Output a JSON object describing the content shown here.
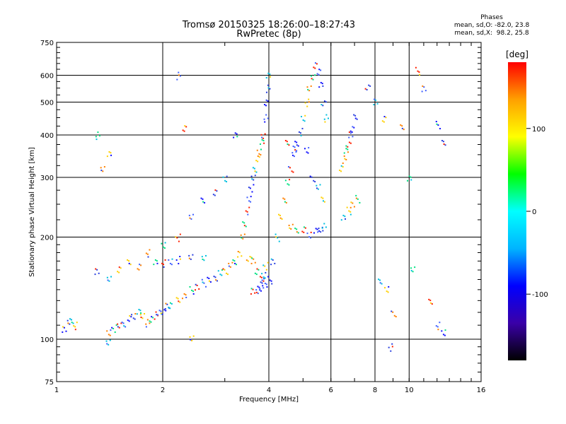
{
  "header": {
    "line1": "Tromsø 20150325 18:26:00–18:27:43",
    "line2": "RwPretec (8p)"
  },
  "phases_box": {
    "title": "Phases",
    "line_o": "mean, sd,O: -82.0, 23.8",
    "line_x": "mean, sd,X:  98.2, 25.8"
  },
  "colorbar": {
    "unit": "[deg]",
    "ticks": [
      100,
      0,
      -100
    ],
    "range": [
      -180,
      180
    ],
    "colors": [
      "#000000",
      "#3a00a8",
      "#0000ff",
      "#00b4ff",
      "#00ffff",
      "#00ff00",
      "#ffff00",
      "#ffa000",
      "#ff0000"
    ]
  },
  "chart_data": {
    "type": "scatter",
    "title": "Tromsø 20150325 18:26:00–18:27:43",
    "subtitle": "RwPretec (8p)",
    "xlabel": "Frequency [MHz]",
    "ylabel": "Stationary phase Virtual Height [km]",
    "x_scale": "log",
    "y_scale": "log",
    "xlim": [
      1,
      16
    ],
    "ylim": [
      75,
      750
    ],
    "x_ticks": [
      1,
      2,
      4,
      6,
      8,
      10,
      16
    ],
    "y_ticks": [
      75,
      100,
      200,
      300,
      400,
      500,
      600,
      750
    ],
    "grid": true,
    "series": [
      {
        "values": [
          [
            1.05,
            108
          ],
          [
            1.08,
            112
          ],
          [
            1.1,
            114
          ],
          [
            1.12,
            110
          ],
          [
            1.4,
            105
          ],
          [
            1.45,
            108
          ],
          [
            1.5,
            110
          ],
          [
            1.55,
            112
          ],
          [
            1.6,
            115
          ],
          [
            1.65,
            118
          ],
          [
            1.7,
            120
          ],
          [
            1.75,
            118
          ],
          [
            1.8,
            112
          ],
          [
            1.85,
            115
          ],
          [
            1.9,
            118
          ],
          [
            1.95,
            120
          ],
          [
            2.0,
            122
          ],
          [
            2.05,
            125
          ],
          [
            2.1,
            127
          ],
          [
            2.2,
            130
          ],
          [
            2.3,
            135
          ],
          [
            2.4,
            140
          ],
          [
            2.5,
            143
          ],
          [
            2.6,
            147
          ],
          [
            2.7,
            150
          ],
          [
            2.8,
            153
          ],
          [
            2.9,
            157
          ],
          [
            3.0,
            160
          ],
          [
            3.1,
            165
          ],
          [
            3.2,
            170
          ],
          [
            2.0,
            168
          ],
          [
            2.1,
            170
          ],
          [
            2.2,
            172
          ],
          [
            2.4,
            175
          ],
          [
            2.6,
            176
          ],
          [
            1.5,
            160
          ],
          [
            1.7,
            165
          ],
          [
            1.9,
            168
          ]
        ]
      },
      {
        "values": [
          [
            3.3,
            180
          ],
          [
            3.35,
            200
          ],
          [
            3.4,
            220
          ],
          [
            3.45,
            240
          ],
          [
            3.5,
            260
          ],
          [
            3.55,
            280
          ],
          [
            3.6,
            300
          ],
          [
            3.65,
            320
          ],
          [
            3.7,
            340
          ],
          [
            3.75,
            360
          ],
          [
            3.8,
            380
          ],
          [
            3.85,
            400
          ],
          [
            3.9,
            450
          ],
          [
            3.92,
            500
          ],
          [
            3.95,
            550
          ],
          [
            3.97,
            600
          ],
          [
            3.5,
            175
          ],
          [
            3.6,
            170
          ],
          [
            3.7,
            160
          ],
          [
            3.8,
            150
          ],
          [
            3.9,
            145
          ],
          [
            4.0,
            150
          ],
          [
            4.1,
            170
          ],
          [
            4.2,
            200
          ],
          [
            4.3,
            230
          ],
          [
            4.4,
            260
          ],
          [
            4.5,
            290
          ],
          [
            4.6,
            320
          ],
          [
            4.7,
            350
          ],
          [
            4.8,
            380
          ],
          [
            4.9,
            410
          ],
          [
            5.0,
            450
          ],
          [
            5.1,
            500
          ],
          [
            5.2,
            550
          ],
          [
            5.3,
            600
          ],
          [
            5.4,
            640
          ],
          [
            5.5,
            620
          ],
          [
            5.6,
            560
          ],
          [
            5.7,
            500
          ],
          [
            5.8,
            450
          ]
        ]
      },
      {
        "values": [
          [
            3.6,
            140
          ],
          [
            3.7,
            138
          ],
          [
            3.75,
            142
          ],
          [
            3.8,
            148
          ],
          [
            3.85,
            155
          ],
          [
            3.9,
            165
          ],
          [
            4.6,
            215
          ],
          [
            4.8,
            212
          ],
          [
            5.0,
            210
          ],
          [
            5.2,
            205
          ],
          [
            5.4,
            208
          ],
          [
            5.6,
            212
          ],
          [
            5.7,
            215
          ],
          [
            6.4,
            320
          ],
          [
            6.5,
            340
          ],
          [
            6.6,
            360
          ],
          [
            6.7,
            380
          ],
          [
            6.8,
            400
          ],
          [
            6.9,
            420
          ],
          [
            7.0,
            450
          ],
          [
            6.5,
            230
          ],
          [
            6.7,
            240
          ],
          [
            6.9,
            250
          ],
          [
            7.1,
            260
          ],
          [
            4.5,
            380
          ],
          [
            4.7,
            370
          ],
          [
            5.1,
            360
          ],
          [
            5.3,
            300
          ],
          [
            5.5,
            280
          ],
          [
            5.7,
            260
          ]
        ]
      },
      {
        "values": [
          [
            1.3,
            160
          ],
          [
            1.4,
            150
          ],
          [
            1.6,
            170
          ],
          [
            1.8,
            180
          ],
          [
            2.0,
            190
          ],
          [
            2.2,
            200
          ],
          [
            2.4,
            230
          ],
          [
            2.6,
            260
          ],
          [
            2.8,
            270
          ],
          [
            3.0,
            300
          ],
          [
            1.4,
            350
          ],
          [
            1.35,
            320
          ],
          [
            1.3,
            400
          ],
          [
            2.3,
            420
          ],
          [
            2.2,
            600
          ],
          [
            3.2,
            400
          ],
          [
            7.6,
            560
          ],
          [
            8.0,
            500
          ],
          [
            8.5,
            450
          ],
          [
            9.5,
            420
          ],
          [
            10.0,
            300
          ],
          [
            10.5,
            620
          ],
          [
            11.0,
            550
          ],
          [
            12.0,
            430
          ],
          [
            12.5,
            380
          ],
          [
            8.2,
            150
          ],
          [
            8.6,
            140
          ],
          [
            9.0,
            120
          ],
          [
            10.2,
            160
          ],
          [
            11.5,
            130
          ],
          [
            12.0,
            110
          ],
          [
            12.5,
            105
          ],
          [
            8.8,
            95
          ],
          [
            1.4,
            98
          ],
          [
            2.4,
            102
          ]
        ]
      }
    ]
  }
}
